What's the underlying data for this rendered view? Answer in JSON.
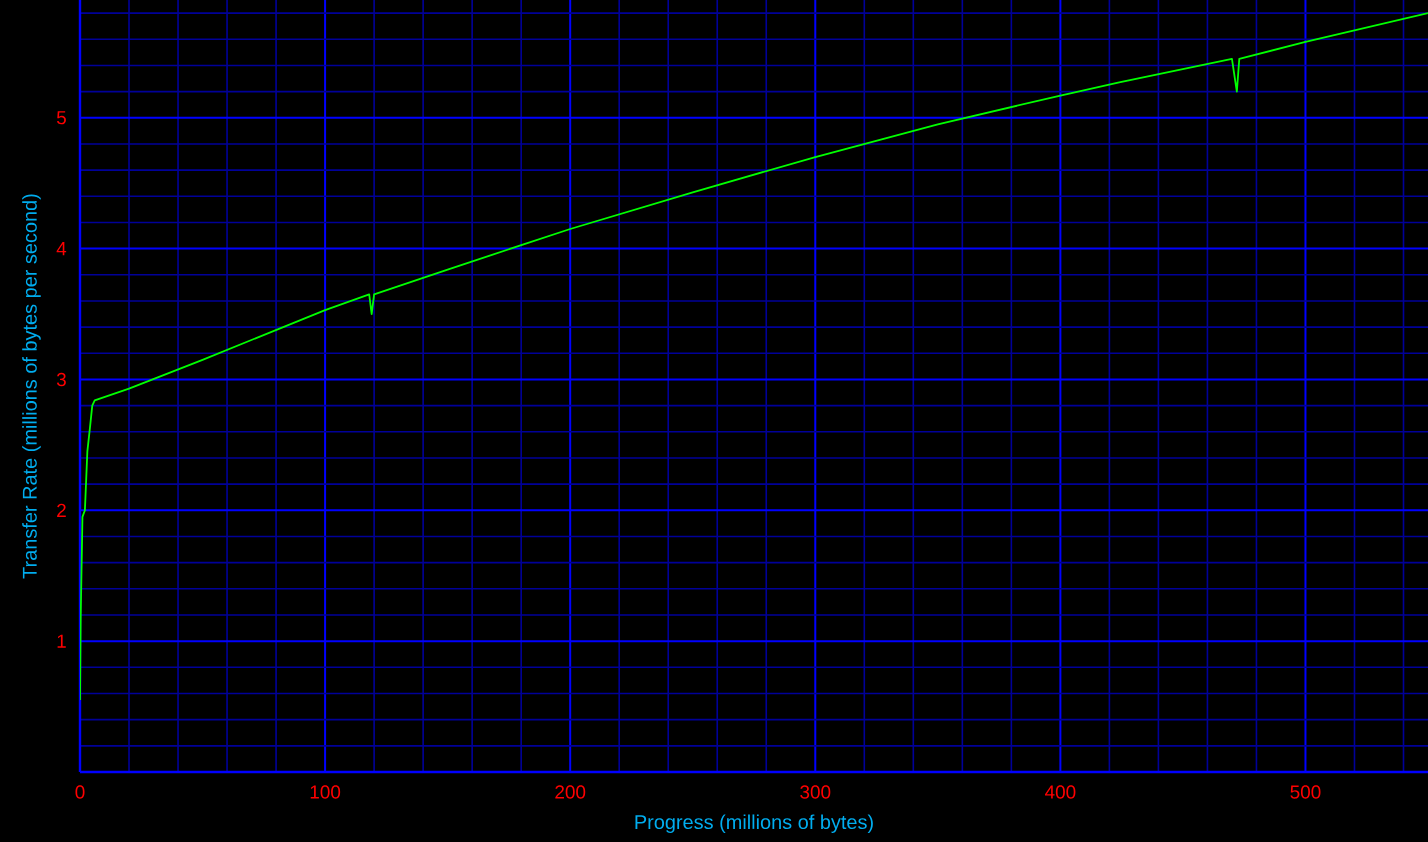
{
  "chart_data": {
    "type": "line",
    "xlabel": "Progress (millions of bytes)",
    "ylabel": "Transfer Rate (millions of bytes per second)",
    "x": [
      0,
      0.3,
      1,
      2,
      3,
      4,
      5,
      6,
      20,
      50,
      100,
      118,
      119,
      120,
      150,
      200,
      250,
      300,
      350,
      400,
      424,
      470,
      472,
      473,
      500,
      550
    ],
    "series": [
      {
        "color": "#00ff00",
        "values": [
          0.55,
          1.2,
          1.95,
          2.0,
          2.45,
          2.62,
          2.8,
          2.84,
          2.93,
          3.15,
          3.53,
          3.65,
          3.5,
          3.65,
          3.84,
          4.15,
          4.43,
          4.7,
          4.95,
          5.17,
          5.27,
          5.45,
          5.2,
          5.45,
          5.58,
          5.8
        ]
      }
    ],
    "xlim": [
      0,
      550
    ],
    "ylim": [
      0,
      5.9
    ],
    "xticks": [
      0,
      {
        "value": 20,
        "label": null
      },
      {
        "value": 40,
        "label": null
      },
      {
        "value": 60,
        "label": null
      },
      {
        "value": 80,
        "label": null
      },
      100,
      {
        "value": 120,
        "label": null
      },
      {
        "value": 140,
        "label": null
      },
      {
        "value": 160,
        "label": null
      },
      {
        "value": 180,
        "label": null
      },
      200,
      {
        "value": 220,
        "label": null
      },
      {
        "value": 240,
        "label": null
      },
      {
        "value": 260,
        "label": null
      },
      {
        "value": 280,
        "label": null
      },
      300,
      {
        "value": 320,
        "label": null
      },
      {
        "value": 340,
        "label": null
      },
      {
        "value": 360,
        "label": null
      },
      {
        "value": 380,
        "label": null
      },
      400,
      {
        "value": 420,
        "label": null
      },
      {
        "value": 440,
        "label": null
      },
      {
        "value": 460,
        "label": null
      },
      {
        "value": 480,
        "label": null
      },
      500,
      {
        "value": 520,
        "label": null
      },
      {
        "value": 540,
        "label": null
      }
    ],
    "yticks": [
      {
        "value": 0.2,
        "label": null
      },
      {
        "value": 0.4,
        "label": null
      },
      {
        "value": 0.6,
        "label": null
      },
      {
        "value": 0.8,
        "label": null
      },
      1,
      {
        "value": 1.2,
        "label": null
      },
      {
        "value": 1.4,
        "label": null
      },
      {
        "value": 1.6,
        "label": null
      },
      {
        "value": 1.8,
        "label": null
      },
      2,
      {
        "value": 2.2,
        "label": null
      },
      {
        "value": 2.4,
        "label": null
      },
      {
        "value": 2.6,
        "label": null
      },
      {
        "value": 2.8,
        "label": null
      },
      3,
      {
        "value": 3.2,
        "label": null
      },
      {
        "value": 3.4,
        "label": null
      },
      {
        "value": 3.6,
        "label": null
      },
      {
        "value": 3.8,
        "label": null
      },
      4,
      {
        "value": 4.2,
        "label": null
      },
      {
        "value": 4.4,
        "label": null
      },
      {
        "value": 4.6,
        "label": null
      },
      {
        "value": 4.8,
        "label": null
      },
      5,
      {
        "value": 5.2,
        "label": null
      },
      {
        "value": 5.4,
        "label": null
      },
      {
        "value": 5.6,
        "label": null
      },
      {
        "value": 5.8,
        "label": null
      }
    ],
    "grid": true,
    "marker": "none",
    "line_style": "solid"
  }
}
